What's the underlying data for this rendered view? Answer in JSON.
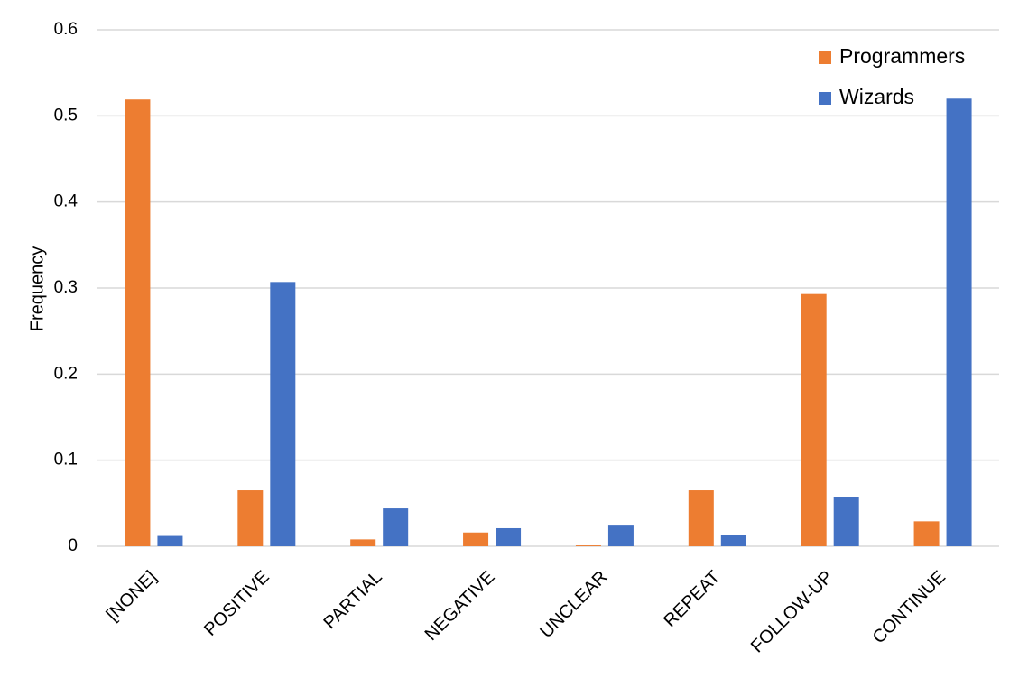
{
  "chart_data": {
    "type": "bar",
    "y_label": "Frequency",
    "categories": [
      "[NONE]",
      "POSITIVE",
      "PARTIAL",
      "NEGATIVE",
      "UNCLEAR",
      "REPEAT",
      "FOLLOW-UP",
      "CONTINUE"
    ],
    "series": [
      {
        "name": "Programmers",
        "color": "#ed7d31",
        "values": [
          0.519,
          0.065,
          0.008,
          0.016,
          0.001,
          0.065,
          0.293,
          0.029
        ]
      },
      {
        "name": "Wizards",
        "color": "#4472c4",
        "values": [
          0.012,
          0.307,
          0.044,
          0.021,
          0.024,
          0.013,
          0.057,
          0.52
        ]
      }
    ],
    "ylim": [
      0,
      0.6
    ],
    "yticks": [
      0,
      0.1,
      0.2,
      0.3,
      0.4,
      0.5,
      0.6
    ],
    "grid": true,
    "legend": "top-right"
  }
}
